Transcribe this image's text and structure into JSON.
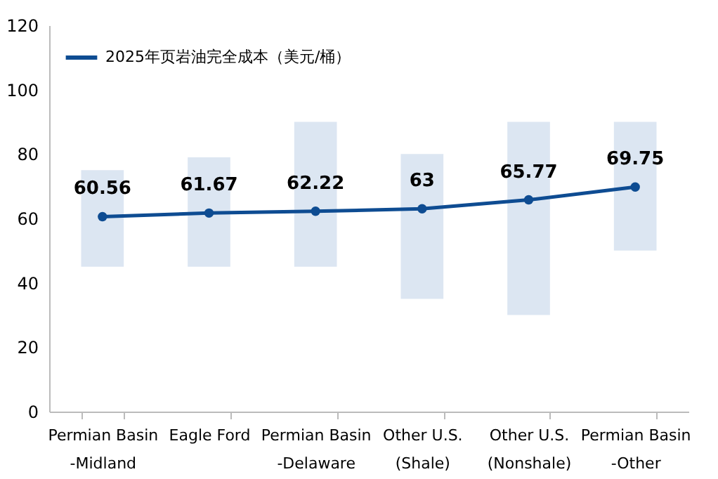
{
  "chart_data": {
    "type": "line",
    "categories": [
      "Permian Basin\n-Midland",
      "Eagle Ford",
      "Permian Basin\n-Delaware",
      "Other U.S.\n(Shale)",
      "Other U.S.\n(Nonshale)",
      "Permian Basin\n-Other"
    ],
    "series": [
      {
        "type": "bar",
        "color": "#dce6f2",
        "base": [
          45,
          45,
          45,
          35,
          30,
          50
        ],
        "values": [
          30,
          34,
          45,
          45,
          60,
          40
        ]
      },
      {
        "name": "2025年页岩油完全成本（美元/桶）",
        "color": "#0e4c92",
        "values": [
          60.56,
          61.67,
          62.22,
          63,
          65.77,
          69.75
        ],
        "value_labels": [
          "60.56",
          "61.67",
          "62.22",
          "63",
          "65.77",
          "69.75"
        ]
      }
    ],
    "ylim": [
      0,
      120
    ],
    "yticks": [
      0,
      20,
      40,
      60,
      80,
      100,
      120
    ],
    "grid": false,
    "legend": "top left",
    "marker": "circle",
    "line_style": "solid"
  }
}
